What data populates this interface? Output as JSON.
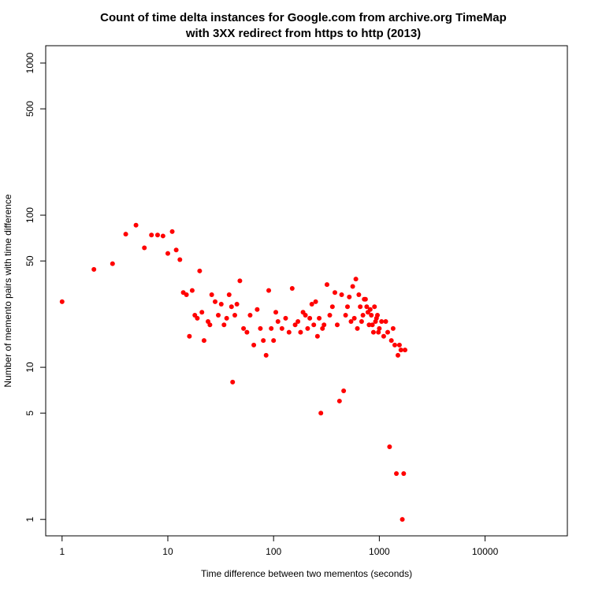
{
  "chart_data": {
    "type": "scatter",
    "title": [
      "Count of time delta instances for Google.com from archive.org TimeMap",
      "with 3XX redirect from https to http (2013)"
    ],
    "xlabel": "Time difference between two mementos (seconds)",
    "ylabel": "Number of memento pairs with time difference",
    "x_scale": "log",
    "y_scale": "log",
    "xlim": [
      0.7,
      60000
    ],
    "ylim": [
      0.78,
      1300
    ],
    "x_ticks": [
      1,
      10,
      100,
      1000,
      10000
    ],
    "x_tick_labels": [
      "1",
      "10",
      "100",
      "1000",
      "10000"
    ],
    "y_ticks": [
      1,
      5,
      10,
      50,
      100,
      500,
      1000
    ],
    "y_tick_labels": [
      "1",
      "5",
      "10",
      "50",
      "100",
      "500",
      "1000"
    ],
    "grid": false,
    "legend": "none",
    "point_color": "#ff0000",
    "series": [
      {
        "x": [
          1,
          2,
          3,
          4,
          5,
          6,
          7,
          8,
          9,
          10,
          11,
          12,
          13,
          14,
          15,
          16,
          17,
          18,
          19,
          20,
          21,
          22,
          24,
          25,
          26,
          28,
          30,
          32,
          34,
          36,
          38,
          40,
          41,
          43,
          45,
          48,
          52,
          56,
          60,
          65,
          70,
          75,
          80,
          85,
          90,
          95,
          100,
          105,
          110,
          120,
          130,
          140,
          150,
          160,
          170,
          180,
          190,
          200,
          210,
          220,
          230,
          240,
          250,
          260,
          270,
          280,
          290,
          300,
          320,
          340,
          360,
          380,
          400,
          420,
          440,
          460,
          480,
          500,
          520,
          540,
          560,
          580,
          600,
          620,
          640,
          660,
          680,
          700,
          720,
          740,
          760,
          780,
          800,
          820,
          840,
          860,
          880,
          900,
          920,
          940,
          960,
          980,
          1000,
          1050,
          1100,
          1150,
          1200,
          1250,
          1300,
          1350,
          1400,
          1450,
          1500,
          1550,
          1600,
          1650,
          1700,
          1750
        ],
        "y": [
          27,
          44,
          48,
          75,
          86,
          61,
          74,
          74,
          73,
          56,
          78,
          59,
          51,
          31,
          30,
          16,
          32,
          22,
          21,
          43,
          23,
          15,
          20,
          19,
          30,
          27,
          22,
          26,
          19,
          21,
          30,
          25,
          8,
          22,
          26,
          37,
          18,
          17,
          22,
          14,
          24,
          18,
          15,
          12,
          32,
          18,
          15,
          23,
          20,
          18,
          21,
          17,
          33,
          19,
          20,
          17,
          23,
          22,
          18,
          21,
          26,
          19,
          27,
          16,
          21,
          5,
          18,
          19,
          35,
          22,
          25,
          31,
          19,
          6,
          30,
          7,
          22,
          25,
          29,
          20,
          34,
          21,
          38,
          18,
          30,
          25,
          20,
          22,
          28,
          28,
          25,
          23,
          19,
          24,
          22,
          19,
          17,
          25,
          20,
          21,
          22,
          17,
          18,
          20,
          16,
          20,
          17,
          3,
          15,
          18,
          14,
          2,
          12,
          14,
          13,
          1,
          2,
          13
        ]
      }
    ]
  }
}
